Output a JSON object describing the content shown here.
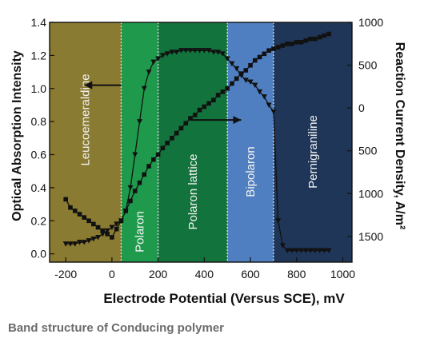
{
  "chart_data": {
    "type": "scatter",
    "xlabel": "Electrode Potential (Versus SCE), mV",
    "ylabel_left": "Optical Absorption Intensity",
    "ylabel_right": "Reaction Current Density, A/m²",
    "x_ticks": [
      -200,
      0,
      200,
      400,
      600,
      800,
      1000
    ],
    "x_tick_labels": [
      "-200",
      "0",
      "200",
      "400",
      "600",
      "800",
      "1000"
    ],
    "y_ticks": [
      0.0,
      0.2,
      0.4,
      0.6,
      0.8,
      1.0,
      1.2,
      1.4
    ],
    "y_tick_labels": [
      "0.0",
      "0.2",
      "0.4",
      "0.6",
      "0.8",
      "1.0",
      "1.2",
      "1.4"
    ],
    "xlim": [
      -270,
      1040
    ],
    "ylim": [
      -0.05,
      1.4
    ],
    "right_ticks": [
      1000,
      500,
      0,
      -500,
      -1000,
      -1500
    ],
    "right_tick_labels": [
      "1000",
      "500",
      "0",
      "500",
      "1000",
      "1500"
    ],
    "right_ylim": [
      -1800,
      1000
    ],
    "regions": [
      {
        "name": "Leucoemeraldine",
        "x": [
          -270,
          40
        ],
        "color": "#8a7b32"
      },
      {
        "name": "Polaron",
        "x": [
          40,
          200
        ],
        "color": "#1f9a4d"
      },
      {
        "name": "Polaron lattice",
        "x": [
          200,
          500
        ],
        "color": "#13733c"
      },
      {
        "name": "Bipolaron",
        "x": [
          500,
          700
        ],
        "color": "#4f7fc0"
      },
      {
        "name": "Pernigraniline",
        "x": [
          700,
          1040
        ],
        "color": "#1f3658"
      }
    ],
    "series": [
      {
        "marker": "square",
        "axis": "left",
        "x": [
          -200,
          -180,
          -160,
          -140,
          -120,
          -100,
          -80,
          -60,
          -40,
          -20,
          0,
          20,
          40,
          60,
          80,
          100,
          120,
          140,
          160,
          180,
          200,
          220,
          240,
          260,
          280,
          300,
          320,
          340,
          360,
          380,
          400,
          420,
          440,
          460,
          480,
          500,
          520,
          540,
          560,
          580,
          600,
          620,
          640,
          660,
          680,
          700,
          720,
          740,
          760,
          780,
          800,
          820,
          840,
          860,
          880,
          900,
          920,
          940
        ],
        "values": [
          0.33,
          0.28,
          0.26,
          0.24,
          0.22,
          0.2,
          0.18,
          0.16,
          0.14,
          0.12,
          0.1,
          0.15,
          0.2,
          0.26,
          0.32,
          0.38,
          0.43,
          0.48,
          0.53,
          0.57,
          0.6,
          0.64,
          0.67,
          0.7,
          0.73,
          0.76,
          0.79,
          0.82,
          0.84,
          0.87,
          0.89,
          0.91,
          0.93,
          0.96,
          0.98,
          1.0,
          1.03,
          1.06,
          1.09,
          1.11,
          1.14,
          1.17,
          1.19,
          1.21,
          1.23,
          1.24,
          1.25,
          1.26,
          1.27,
          1.27,
          1.28,
          1.28,
          1.29,
          1.3,
          1.3,
          1.31,
          1.32,
          1.33
        ]
      },
      {
        "marker": "triangle-down",
        "axis": "left",
        "x": [
          -200,
          -180,
          -160,
          -140,
          -120,
          -100,
          -80,
          -60,
          -40,
          -20,
          0,
          20,
          40,
          60,
          80,
          100,
          120,
          140,
          160,
          180,
          200,
          220,
          240,
          260,
          280,
          300,
          320,
          340,
          360,
          380,
          400,
          420,
          440,
          460,
          480,
          500,
          520,
          540,
          560,
          580,
          600,
          620,
          640,
          660,
          680,
          700,
          720,
          740,
          760,
          780,
          800,
          820,
          840,
          860,
          880,
          900,
          920,
          940
        ],
        "values": [
          0.06,
          0.06,
          0.06,
          0.07,
          0.07,
          0.08,
          0.09,
          0.1,
          0.12,
          0.14,
          0.16,
          0.18,
          0.2,
          0.26,
          0.4,
          0.6,
          0.8,
          1.0,
          1.1,
          1.16,
          1.18,
          1.2,
          1.21,
          1.22,
          1.22,
          1.23,
          1.23,
          1.23,
          1.23,
          1.23,
          1.23,
          1.23,
          1.22,
          1.22,
          1.21,
          1.18,
          1.15,
          1.12,
          1.08,
          1.05,
          1.04,
          1.02,
          0.98,
          0.95,
          0.9,
          0.86,
          0.2,
          0.05,
          0.02,
          0.02,
          0.02,
          0.02,
          0.02,
          0.02,
          0.02,
          0.02,
          0.02,
          0.02
        ]
      }
    ],
    "arrows": [
      {
        "from": [
          40,
          1.02
        ],
        "to": [
          -120,
          1.02
        ]
      },
      {
        "from": [
          340,
          0.81
        ],
        "to": [
          560,
          0.81
        ]
      }
    ]
  },
  "caption": "Band structure of Conducing polymer",
  "colors": {
    "frame": "#111111",
    "marker": "#111111",
    "label": "#f4f4f4"
  }
}
